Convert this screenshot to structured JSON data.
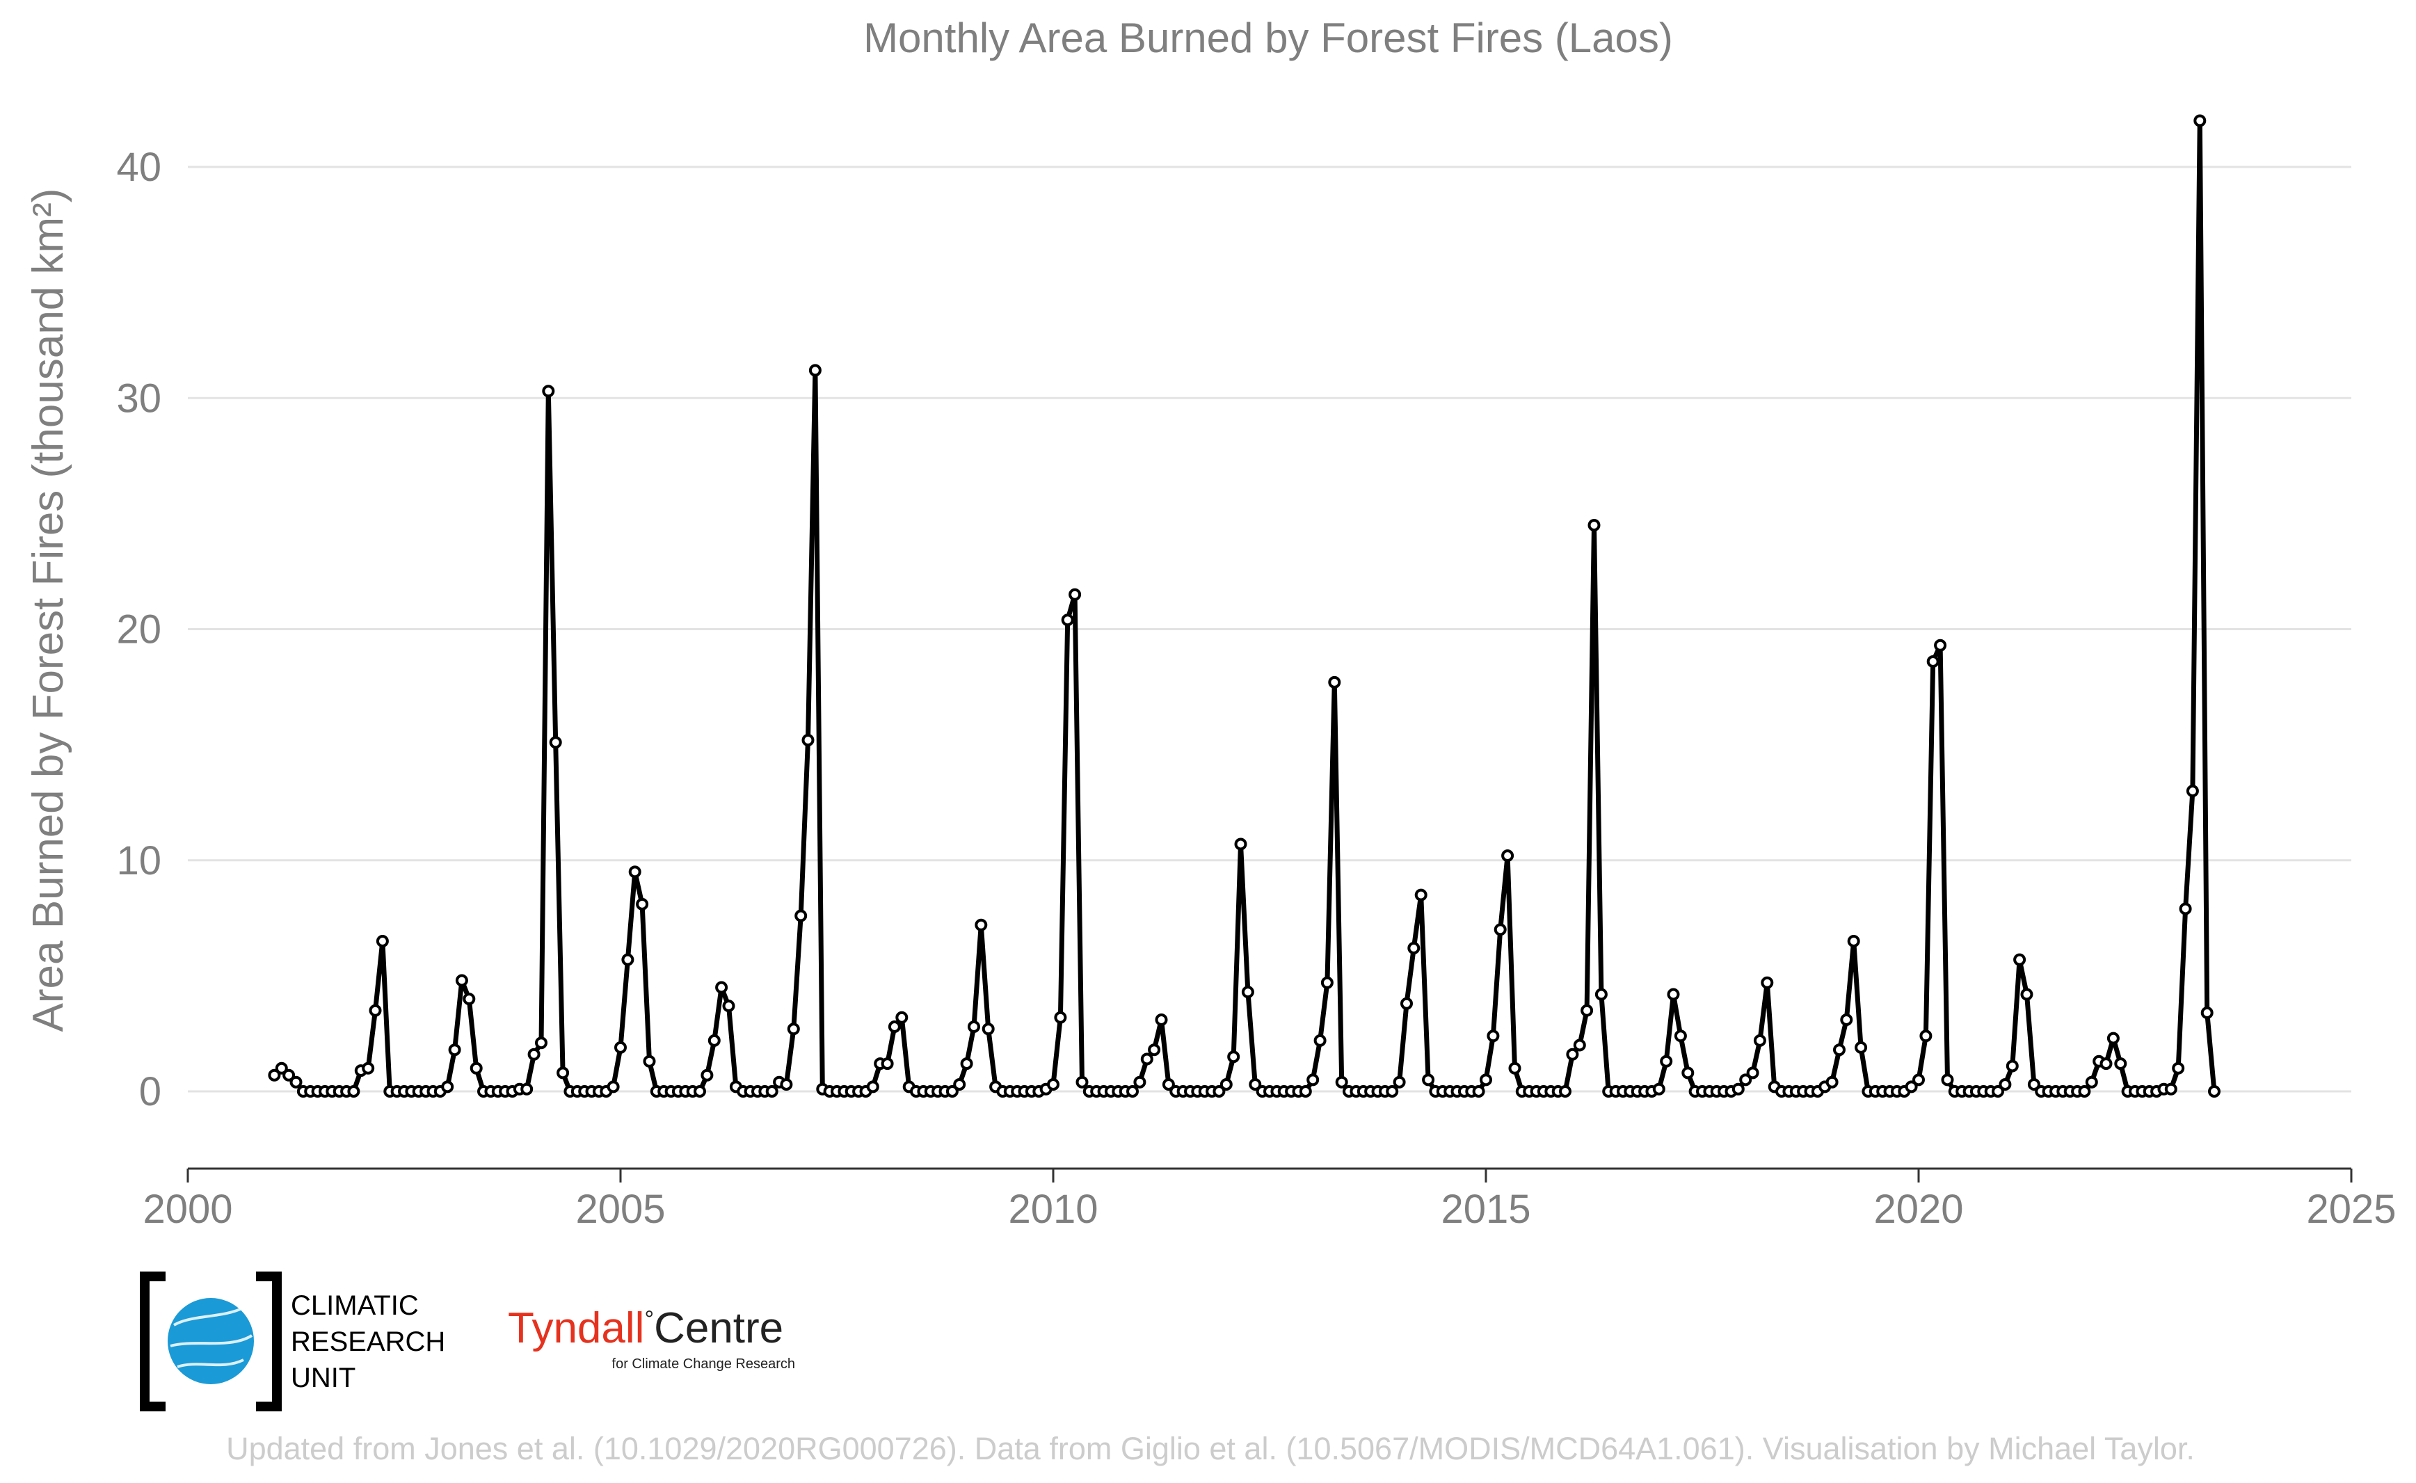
{
  "chart_data": {
    "type": "line",
    "title": "Monthly Area Burned by Forest Fires (Laos)",
    "ylabel": "Area Burned by Forest Fires (thousand km²)",
    "xlabel": "",
    "xlim": [
      2000,
      2025
    ],
    "ylim": [
      -3.3,
      42.5
    ],
    "x_ticks": [
      "2000",
      "2005",
      "2010",
      "2015",
      "2020",
      "2025"
    ],
    "y_ticks": [
      "0",
      "10",
      "20",
      "30",
      "40"
    ],
    "grid": "horizontal",
    "series": [
      {
        "start": "2001-01",
        "frequency": "monthly",
        "color": "#000000",
        "values": [
          0.7,
          1.0,
          0.7,
          0.4,
          0.0,
          0.0,
          0.0,
          0.0,
          0.0,
          0.0,
          0.0,
          0.0,
          0.9,
          1.0,
          3.5,
          6.5,
          0.0,
          0.0,
          0.0,
          0.0,
          0.0,
          0.0,
          0.0,
          0.0,
          0.2,
          1.8,
          4.8,
          4.0,
          1.0,
          0.0,
          0.0,
          0.0,
          0.0,
          0.0,
          0.1,
          0.1,
          1.6,
          2.1,
          30.3,
          15.1,
          0.8,
          0.0,
          0.0,
          0.0,
          0.0,
          0.0,
          0.0,
          0.2,
          1.9,
          5.7,
          9.5,
          8.1,
          1.3,
          0.0,
          0.0,
          0.0,
          0.0,
          0.0,
          0.0,
          0.0,
          0.7,
          2.2,
          4.5,
          3.7,
          0.2,
          0.0,
          0.0,
          0.0,
          0.0,
          0.0,
          0.4,
          0.3,
          2.7,
          7.6,
          15.2,
          31.2,
          0.1,
          0.0,
          0.0,
          0.0,
          0.0,
          0.0,
          0.0,
          0.2,
          1.2,
          1.2,
          2.8,
          3.2,
          0.2,
          0.0,
          0.0,
          0.0,
          0.0,
          0.0,
          0.0,
          0.3,
          1.2,
          2.8,
          7.2,
          2.7,
          0.2,
          0.0,
          0.0,
          0.0,
          0.0,
          0.0,
          0.0,
          0.1,
          0.3,
          3.2,
          20.4,
          21.5,
          0.4,
          0.0,
          0.0,
          0.0,
          0.0,
          0.0,
          0.0,
          0.0,
          0.4,
          1.4,
          1.8,
          3.1,
          0.3,
          0.0,
          0.0,
          0.0,
          0.0,
          0.0,
          0.0,
          0.0,
          0.3,
          1.5,
          10.7,
          4.3,
          0.3,
          0.0,
          0.0,
          0.0,
          0.0,
          0.0,
          0.0,
          0.0,
          0.5,
          2.2,
          4.7,
          17.7,
          0.4,
          0.0,
          0.0,
          0.0,
          0.0,
          0.0,
          0.0,
          0.0,
          0.4,
          3.8,
          6.2,
          8.5,
          0.5,
          0.0,
          0.0,
          0.0,
          0.0,
          0.0,
          0.0,
          0.0,
          0.5,
          2.4,
          7.0,
          10.2,
          1.0,
          0.0,
          0.0,
          0.0,
          0.0,
          0.0,
          0.0,
          0.0,
          1.6,
          2.0,
          3.5,
          24.5,
          4.2,
          0.0,
          0.0,
          0.0,
          0.0,
          0.0,
          0.0,
          0.0,
          0.1,
          1.3,
          4.2,
          2.4,
          0.8,
          0.0,
          0.0,
          0.0,
          0.0,
          0.0,
          0.0,
          0.1,
          0.5,
          0.8,
          2.2,
          4.7,
          0.2,
          0.0,
          0.0,
          0.0,
          0.0,
          0.0,
          0.0,
          0.2,
          0.4,
          1.8,
          3.1,
          6.5,
          1.9,
          0.0,
          0.0,
          0.0,
          0.0,
          0.0,
          0.0,
          0.2,
          0.5,
          2.4,
          18.6,
          19.3,
          0.5,
          0.0,
          0.0,
          0.0,
          0.0,
          0.0,
          0.0,
          0.0,
          0.3,
          1.1,
          5.7,
          4.2,
          0.3,
          0.0,
          0.0,
          0.0,
          0.0,
          0.0,
          0.0,
          0.0,
          0.4,
          1.3,
          1.2,
          2.3,
          1.2,
          0.0,
          0.0,
          0.0,
          0.0,
          0.0,
          0.1,
          0.1,
          1.0,
          7.9,
          13.0,
          42.0,
          3.4,
          0.0
        ]
      }
    ]
  },
  "footer": {
    "credit": "Updated from Jones et al. (10.1029/2020RG000726). Data from Giglio et al. (10.5067/MODIS/MCD64A1.061). Visualisation by Michael Taylor."
  },
  "logos": {
    "cru": {
      "lines": [
        "CLIMATIC",
        "RESEARCH",
        "UNIT"
      ]
    },
    "tyndall": {
      "name_a": "Tyndall",
      "degree": "°",
      "name_b": "Centre",
      "subtitle": "for Climate Change Research",
      "color_a": "#e5321e",
      "color_b": "#222222"
    },
    "cru_color": "#1a9ad6"
  }
}
